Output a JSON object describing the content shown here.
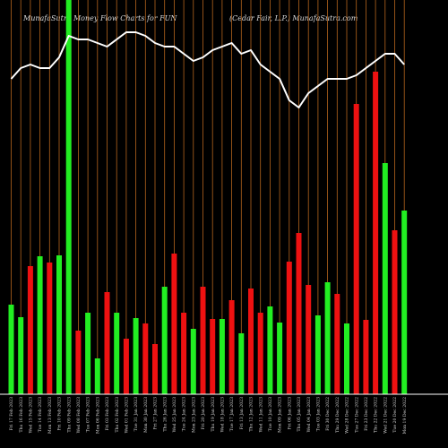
{
  "header": {
    "title_left": "MunafaSutra  Money Flow  Charts for FUN",
    "title_right": "(Cedar Fair, L.P.) MunafaSutra.com"
  },
  "chart_data": {
    "type": "bar",
    "title": "MunafaSutra  Money Flow  Charts for FUN",
    "subtitle": "(Cedar Fair, L.P.) MunafaSutra.com",
    "categories": [
      "Fri 17 Feb 2023",
      "Thu 16 Feb 2023",
      "Wed 15 Feb 2023",
      "Tue 14 Feb 2023",
      "Mon 13 Feb 2023",
      "Fri 10 Feb 2023",
      "Thu 09 Feb 2023",
      "Wed 08 Feb 2023",
      "Tue 07 Feb 2023",
      "Mon 06 Feb 2023",
      "Fri 03 Feb 2023",
      "Thu 02 Feb 2023",
      "Wed 01 Feb 2023",
      "Tue 31 Jan 2023",
      "Mon 30 Jan 2023",
      "Fri 27 Jan 2023",
      "Thu 26 Jan 2023",
      "Wed 25 Jan 2023",
      "Tue 24 Jan 2023",
      "Mon 23 Jan 2023",
      "Fri 20 Jan 2023",
      "Thu 19 Jan 2023",
      "Wed 18 Jan 2023",
      "Tue 17 Jan 2023",
      "Fri 13 Jan 2023",
      "Thu 12 Jan 2023",
      "Wed 11 Jan 2023",
      "Tue 10 Jan 2023",
      "Mon 09 Jan 2023",
      "Fri 06 Jan 2023",
      "Thu 05 Jan 2023",
      "Wed 04 Jan 2023",
      "Tue 03 Jan 2023",
      "Fri 30 Dec 2022",
      "Thu 29 Dec 2022",
      "Wed 28 Dec 2022",
      "Tue 27 Dec 2022",
      "Fri 23 Dec 2022",
      "Thu 22 Dec 2022",
      "Wed 21 Dec 2022",
      "Tue 20 Dec 2022",
      "Mon 19 Dec 2022"
    ],
    "series": [
      {
        "values": [
          100,
          86,
          143,
          154,
          147,
          155,
          440,
          71,
          91,
          40,
          114,
          91,
          62,
          85,
          79,
          56,
          120,
          157,
          91,
          73,
          120,
          84,
          84,
          105,
          68,
          118,
          91,
          98,
          80,
          148,
          180,
          122,
          88,
          125,
          112,
          79,
          324,
          83,
          360,
          258,
          183,
          205
        ],
        "colors": [
          "green",
          "green",
          "red",
          "green",
          "red",
          "green",
          "green",
          "red",
          "green",
          "green",
          "red",
          "green",
          "red",
          "green",
          "red",
          "red",
          "green",
          "red",
          "red",
          "green",
          "red",
          "red",
          "green",
          "red",
          "green",
          "red",
          "red",
          "green",
          "green",
          "red",
          "red",
          "red",
          "green",
          "green",
          "red",
          "green",
          "red",
          "red",
          "red",
          "green",
          "red",
          "green"
        ]
      },
      {
        "name": "price",
        "values": [
          88,
          91,
          92,
          91,
          91,
          94,
          100,
          99,
          99,
          98,
          97,
          99,
          101,
          101,
          100,
          98,
          97,
          97,
          95,
          93,
          94,
          96,
          97,
          98,
          95,
          96,
          92,
          90,
          88,
          82,
          80,
          84,
          86,
          88,
          88,
          88,
          89,
          91,
          93,
          95,
          95,
          92
        ],
        "style": "line"
      }
    ],
    "ylim": [
      0,
      440
    ],
    "grid": true,
    "colors": {
      "background": "#000000",
      "grid": "#b5651d",
      "up_bar": "#22ee22",
      "down_bar": "#ee1111",
      "price_line": "#ffffff",
      "axis": "#ffffff"
    }
  }
}
